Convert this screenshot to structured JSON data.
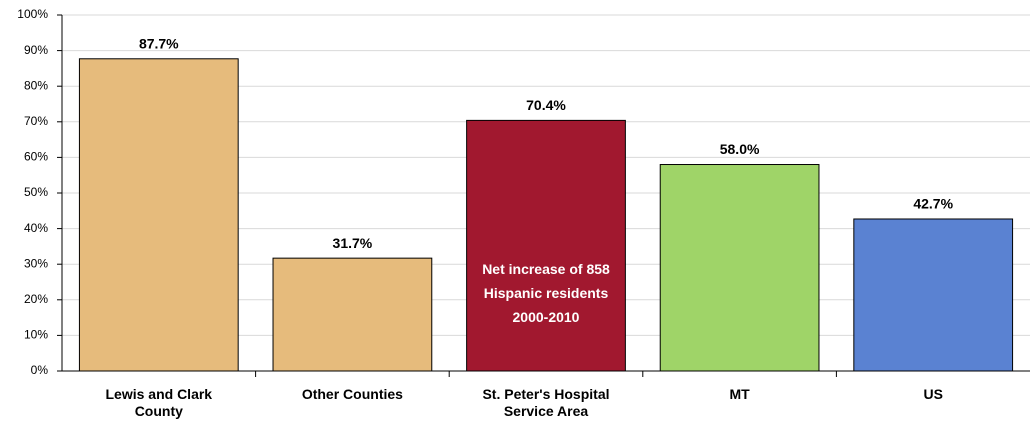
{
  "chart_data": {
    "type": "bar",
    "categories": [
      "Lewis and Clark County",
      "Other Counties",
      "St. Peter's Hospital Service Area",
      "MT",
      "US"
    ],
    "values": [
      87.7,
      31.7,
      70.4,
      58.0,
      42.7
    ],
    "value_labels": [
      "87.7%",
      "31.7%",
      "70.4%",
      "58.0%",
      "42.7%"
    ],
    "colors": [
      "#e6bb7c",
      "#e6bb7c",
      "#a1182f",
      "#9fd468",
      "#5a82d2"
    ],
    "annotation": "Net increase of 858 Hispanic residents 2000-2010",
    "ylim": [
      0,
      100
    ],
    "yticks": [
      {
        "value": 0,
        "label": "0%"
      },
      {
        "value": 10,
        "label": "10%"
      },
      {
        "value": 20,
        "label": "20%"
      },
      {
        "value": 30,
        "label": "30%"
      },
      {
        "value": 40,
        "label": "40%"
      },
      {
        "value": 50,
        "label": "50%"
      },
      {
        "value": 60,
        "label": "60%"
      },
      {
        "value": 70,
        "label": "70%"
      },
      {
        "value": 80,
        "label": "80%"
      },
      {
        "value": 90,
        "label": "90%"
      },
      {
        "value": 100,
        "label": "100%"
      }
    ],
    "grid": true
  }
}
